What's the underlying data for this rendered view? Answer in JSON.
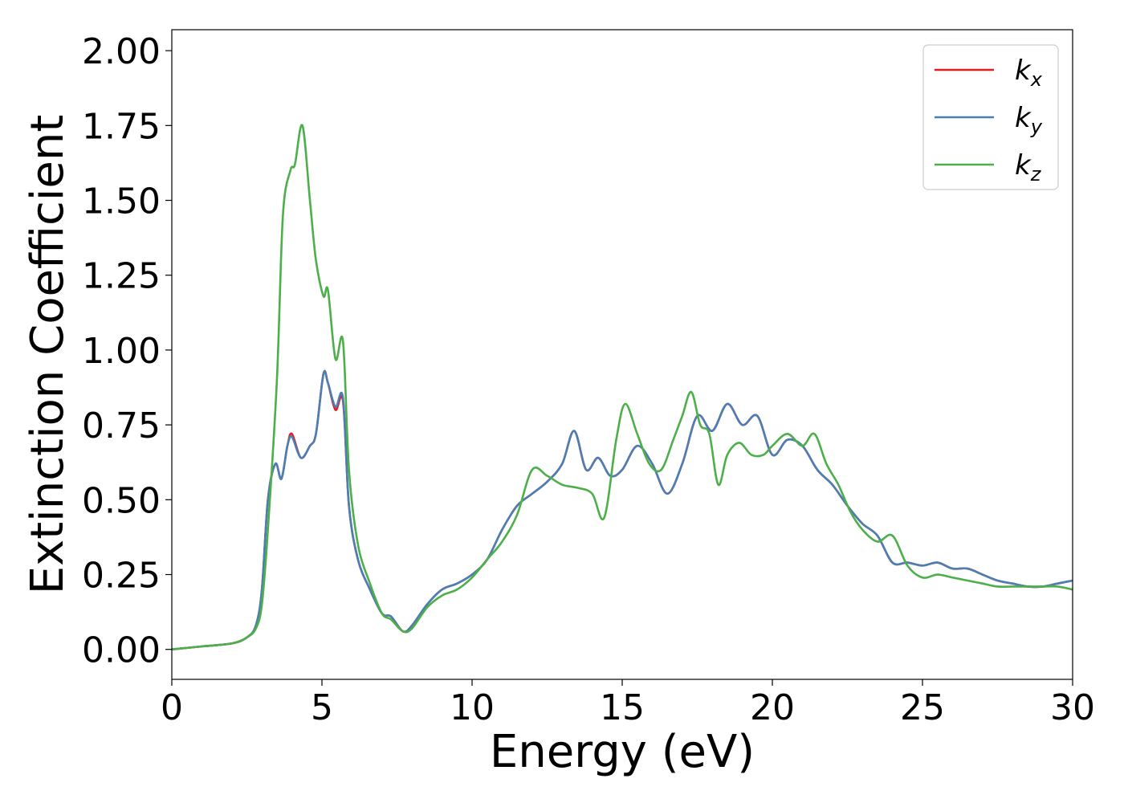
{
  "chart_data": {
    "type": "line",
    "xlabel": "Energy (eV)",
    "ylabel": "Extinction Coefficient",
    "xlim": [
      0,
      30
    ],
    "ylim": [
      -0.1,
      2.07
    ],
    "xticks": [
      0,
      5,
      10,
      15,
      20,
      25,
      30
    ],
    "xtick_labels": [
      "0",
      "5",
      "10",
      "15",
      "20",
      "25",
      "30"
    ],
    "yticks": [
      0.0,
      0.25,
      0.5,
      0.75,
      1.0,
      1.25,
      1.5,
      1.75,
      2.0
    ],
    "ytick_labels": [
      "0.00",
      "0.25",
      "0.50",
      "0.75",
      "1.00",
      "1.25",
      "1.50",
      "1.75",
      "2.00"
    ],
    "grid": false,
    "legend_position": "top-right",
    "series": [
      {
        "name": "k",
        "subscript": "x",
        "color": "#e41a1c",
        "x": [
          0,
          1,
          2,
          2.5,
          2.8,
          3.0,
          3.2,
          3.45,
          3.65,
          3.85,
          4.0,
          4.3,
          4.6,
          4.8,
          5.05,
          5.2,
          5.45,
          5.7,
          5.9,
          6.2,
          6.6,
          7.0,
          7.3,
          7.7,
          8.0,
          8.5,
          9.0,
          9.5,
          10.0,
          10.5,
          11.0,
          11.5,
          12.0,
          12.5,
          13.0,
          13.4,
          13.8,
          14.2,
          14.6,
          15.0,
          15.5,
          16.0,
          16.5,
          17.0,
          17.5,
          18.0,
          18.5,
          19.0,
          19.5,
          20.0,
          20.5,
          21.0,
          21.5,
          22.0,
          22.5,
          23.0,
          23.5,
          24.0,
          24.5,
          25.0,
          25.5,
          26.0,
          26.5,
          27.0,
          27.5,
          28.0,
          28.5,
          29.0,
          29.5,
          30.0
        ],
        "y": [
          0.0,
          0.01,
          0.02,
          0.04,
          0.08,
          0.2,
          0.5,
          0.62,
          0.57,
          0.68,
          0.72,
          0.64,
          0.68,
          0.72,
          0.92,
          0.89,
          0.8,
          0.83,
          0.48,
          0.3,
          0.2,
          0.12,
          0.11,
          0.06,
          0.08,
          0.15,
          0.2,
          0.22,
          0.25,
          0.3,
          0.4,
          0.48,
          0.52,
          0.56,
          0.62,
          0.73,
          0.6,
          0.64,
          0.58,
          0.6,
          0.68,
          0.62,
          0.52,
          0.62,
          0.78,
          0.73,
          0.82,
          0.75,
          0.78,
          0.65,
          0.7,
          0.68,
          0.6,
          0.55,
          0.48,
          0.42,
          0.38,
          0.29,
          0.29,
          0.28,
          0.29,
          0.27,
          0.27,
          0.25,
          0.23,
          0.22,
          0.21,
          0.21,
          0.22,
          0.23
        ]
      },
      {
        "name": "k",
        "subscript": "y",
        "color": "#4a7fb5",
        "x": [
          0,
          1,
          2,
          2.5,
          2.8,
          3.0,
          3.2,
          3.45,
          3.65,
          3.85,
          4.0,
          4.3,
          4.6,
          4.8,
          5.05,
          5.2,
          5.45,
          5.7,
          5.9,
          6.2,
          6.6,
          7.0,
          7.3,
          7.7,
          8.0,
          8.5,
          9.0,
          9.5,
          10.0,
          10.5,
          11.0,
          11.5,
          12.0,
          12.5,
          13.0,
          13.4,
          13.8,
          14.2,
          14.6,
          15.0,
          15.5,
          16.0,
          16.5,
          17.0,
          17.5,
          18.0,
          18.5,
          19.0,
          19.5,
          20.0,
          20.5,
          21.0,
          21.5,
          22.0,
          22.5,
          23.0,
          23.5,
          24.0,
          24.5,
          25.0,
          25.5,
          26.0,
          26.5,
          27.0,
          27.5,
          28.0,
          28.5,
          29.0,
          29.5,
          30.0
        ],
        "y": [
          0.0,
          0.01,
          0.02,
          0.04,
          0.08,
          0.2,
          0.5,
          0.62,
          0.57,
          0.68,
          0.71,
          0.64,
          0.68,
          0.72,
          0.92,
          0.89,
          0.81,
          0.84,
          0.48,
          0.3,
          0.2,
          0.12,
          0.11,
          0.06,
          0.08,
          0.15,
          0.2,
          0.22,
          0.25,
          0.3,
          0.4,
          0.48,
          0.52,
          0.56,
          0.62,
          0.73,
          0.6,
          0.64,
          0.58,
          0.6,
          0.68,
          0.62,
          0.52,
          0.62,
          0.78,
          0.73,
          0.82,
          0.75,
          0.78,
          0.65,
          0.7,
          0.68,
          0.6,
          0.55,
          0.48,
          0.42,
          0.38,
          0.29,
          0.29,
          0.28,
          0.29,
          0.27,
          0.27,
          0.25,
          0.23,
          0.22,
          0.21,
          0.21,
          0.22,
          0.23
        ]
      },
      {
        "name": "k",
        "subscript": "z",
        "color": "#4daf4a",
        "x": [
          0,
          1,
          2,
          2.5,
          2.8,
          3.0,
          3.2,
          3.5,
          3.7,
          3.95,
          4.1,
          4.35,
          4.6,
          4.8,
          5.05,
          5.2,
          5.45,
          5.7,
          5.9,
          6.2,
          6.6,
          7.0,
          7.3,
          7.7,
          8.0,
          8.5,
          9.0,
          9.5,
          10.0,
          10.5,
          11.0,
          11.5,
          12.0,
          12.5,
          13.0,
          13.5,
          14.0,
          14.4,
          14.8,
          15.1,
          15.5,
          15.9,
          16.3,
          16.7,
          17.0,
          17.3,
          17.6,
          17.9,
          18.2,
          18.5,
          18.9,
          19.3,
          19.7,
          20.0,
          20.5,
          21.0,
          21.4,
          21.8,
          22.2,
          22.6,
          23.0,
          23.5,
          24.0,
          24.5,
          25.0,
          25.5,
          26.0,
          26.5,
          27.0,
          27.5,
          28.0,
          28.5,
          29.0,
          29.5,
          30.0
        ],
        "y": [
          0.0,
          0.01,
          0.02,
          0.04,
          0.07,
          0.15,
          0.4,
          0.9,
          1.45,
          1.6,
          1.62,
          1.75,
          1.5,
          1.3,
          1.18,
          1.2,
          0.97,
          1.03,
          0.6,
          0.35,
          0.22,
          0.12,
          0.1,
          0.06,
          0.07,
          0.14,
          0.18,
          0.2,
          0.24,
          0.3,
          0.36,
          0.45,
          0.6,
          0.58,
          0.55,
          0.54,
          0.52,
          0.44,
          0.7,
          0.82,
          0.72,
          0.62,
          0.6,
          0.7,
          0.78,
          0.86,
          0.75,
          0.72,
          0.55,
          0.65,
          0.69,
          0.65,
          0.65,
          0.68,
          0.72,
          0.68,
          0.72,
          0.62,
          0.55,
          0.46,
          0.4,
          0.36,
          0.38,
          0.28,
          0.24,
          0.25,
          0.24,
          0.23,
          0.22,
          0.21,
          0.21,
          0.21,
          0.21,
          0.21,
          0.2
        ]
      }
    ]
  }
}
